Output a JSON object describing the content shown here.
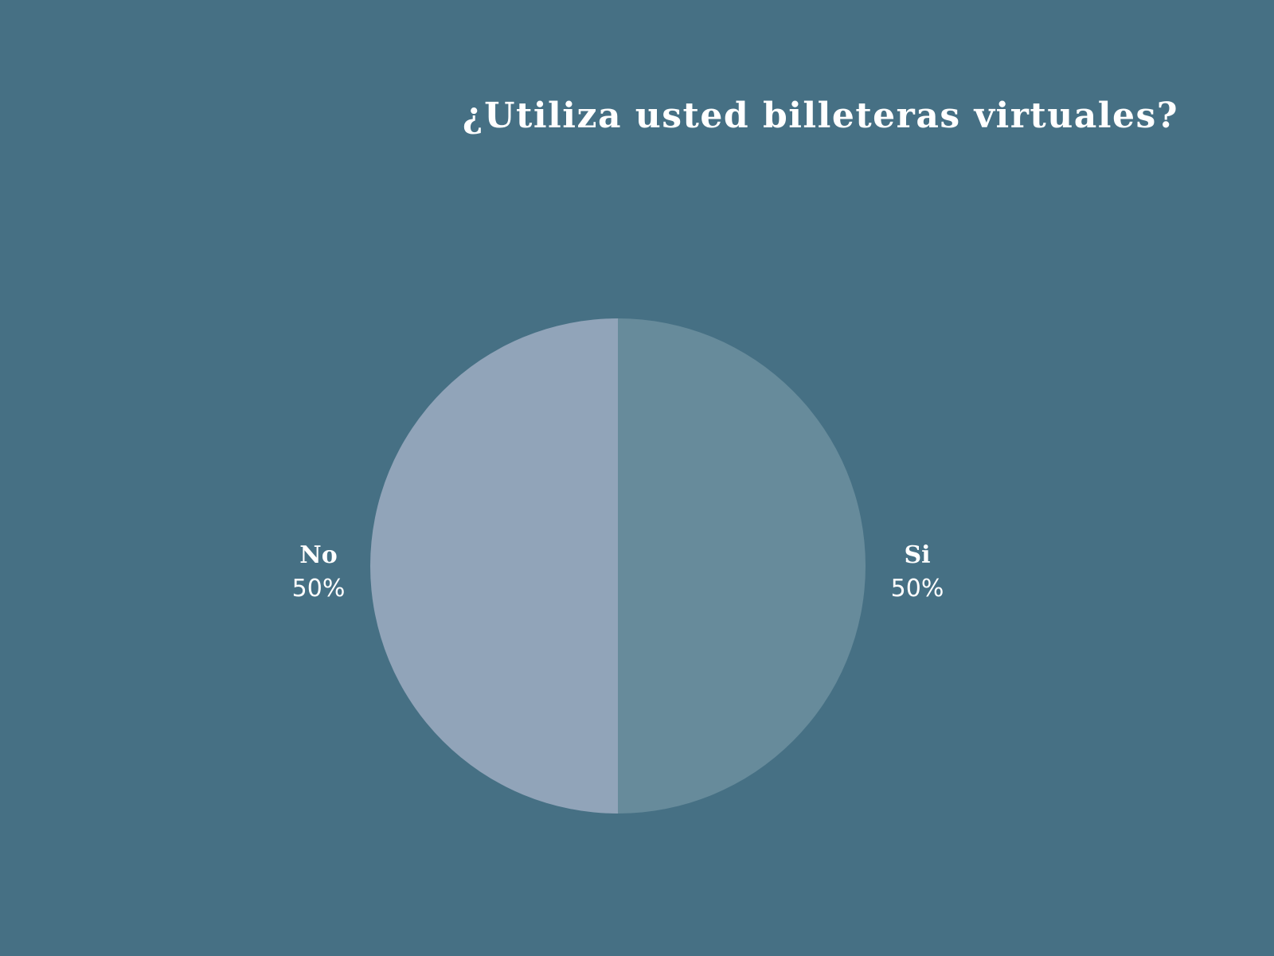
{
  "chart_data": {
    "type": "pie",
    "title": "¿Utiliza usted billeteras virtuales?",
    "slices": [
      {
        "label": "Si",
        "value": 50,
        "display": "50%",
        "color": "#678b9b"
      },
      {
        "label": "No",
        "value": 50,
        "display": "50%",
        "color": "#91a4b9"
      }
    ],
    "start_angle_deg": 0,
    "direction": "clockwise",
    "background_color": "#467084",
    "label_color": "#ffffff"
  }
}
